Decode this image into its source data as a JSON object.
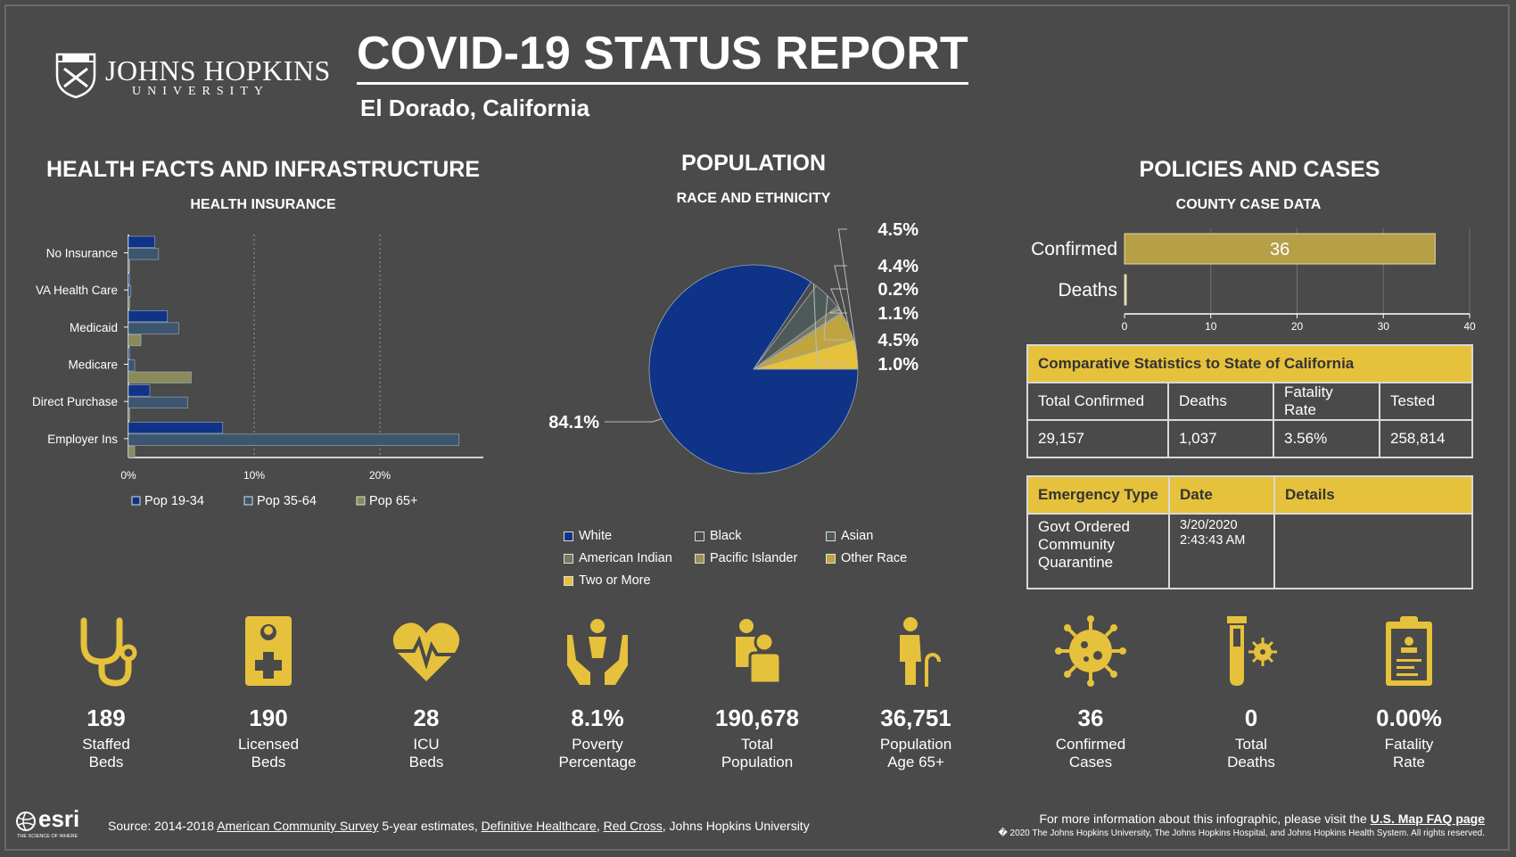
{
  "header": {
    "logo_line1": "JOHNS HOPKINS",
    "logo_line2": "UNIVERSITY",
    "title": "COVID-19 STATUS REPORT",
    "location": "El Dorado,  California"
  },
  "sections": {
    "health": "HEALTH FACTS AND INFRASTRUCTURE",
    "population": "POPULATION",
    "policies": "POLICIES AND CASES"
  },
  "colors": {
    "bg": "#4a4a4a",
    "yellow": "#e6c13b",
    "navy": "#0f3386",
    "slate": "#3d566f",
    "olive": "#8b8a5a",
    "pie_white": "#0f3386",
    "pie_black": "#4a4a4a"
  },
  "chart_data": [
    {
      "type": "bar",
      "orientation": "horizontal",
      "title": "HEALTH INSURANCE",
      "categories": [
        "No Insurance",
        "VA Health Care",
        "Medicaid",
        "Medicare",
        "Direct Purchase",
        "Employer Ins"
      ],
      "series": [
        {
          "name": "Pop 19-34",
          "color": "#0f3386",
          "values": [
            2.1,
            0.1,
            3.1,
            0.1,
            1.7,
            7.5
          ]
        },
        {
          "name": "Pop 35-64",
          "color": "#3d566f",
          "values": [
            2.4,
            0.2,
            4.0,
            0.5,
            4.7,
            26.3
          ]
        },
        {
          "name": "Pop 65+",
          "color": "#8b8a5a",
          "values": [
            0.1,
            0.1,
            1.0,
            5.0,
            0.1,
            0.5
          ]
        }
      ],
      "xticks": [
        "0%",
        "10%",
        "20%"
      ],
      "xlim": [
        0,
        28
      ],
      "grid": true
    },
    {
      "type": "pie",
      "title": "RACE AND ETHNICITY",
      "slices": [
        {
          "name": "White",
          "value": 84.1,
          "label": "84.1%",
          "color": "#0f3386"
        },
        {
          "name": "Black",
          "value": 1.0,
          "label": "1.0%",
          "color": "#4a4a4a"
        },
        {
          "name": "Asian",
          "value": 4.5,
          "label": "4.5%",
          "color": "#4f5a58"
        },
        {
          "name": "American Indian",
          "value": 1.1,
          "label": "1.1%",
          "color": "#77785c"
        },
        {
          "name": "Pacific Islander",
          "value": 0.2,
          "label": "0.2%",
          "color": "#9a9150"
        },
        {
          "name": "Other Race",
          "value": 4.4,
          "label": "4.4%",
          "color": "#bfa43f"
        },
        {
          "name": "Two or More",
          "value": 4.5,
          "label": "4.5%",
          "color": "#e6c13b"
        }
      ]
    },
    {
      "type": "bar",
      "orientation": "horizontal",
      "title": "COUNTY CASE DATA",
      "categories": [
        "Confirmed",
        "Deaths"
      ],
      "values": [
        36,
        0
      ],
      "value_labels": [
        "36",
        ""
      ],
      "color": "#b59f47",
      "xticks": [
        "0",
        "10",
        "20",
        "30",
        "40"
      ],
      "xlim": [
        0,
        40
      ],
      "grid": true
    }
  ],
  "comparative": {
    "title": "Comparative Statistics to State of California",
    "headers": [
      "Total Confirmed",
      "Deaths",
      "Fatality Rate",
      "Tested"
    ],
    "values": [
      "29,157",
      "1,037",
      "3.56%",
      "258,814"
    ]
  },
  "emergency": {
    "headers": [
      "Emergency Type",
      "Date",
      "Details"
    ],
    "type": "Govt Ordered Community Quarantine",
    "date": "3/20/2020 2:43:43 AM",
    "details": ""
  },
  "stats": [
    {
      "icon": "stethoscope-icon",
      "value": "189",
      "label": "Staffed\nBeds"
    },
    {
      "icon": "medical-id-icon",
      "value": "190",
      "label": "Licensed\nBeds"
    },
    {
      "icon": "heartbeat-icon",
      "value": "28",
      "label": "ICU\nBeds"
    },
    {
      "icon": "helping-hands-icon",
      "value": "8.1%",
      "label": "Poverty\nPercentage"
    },
    {
      "icon": "people-icon",
      "value": "190,678",
      "label": "Total\nPopulation"
    },
    {
      "icon": "elderly-person-icon",
      "value": "36,751",
      "label": "Population\nAge 65+"
    },
    {
      "icon": "virus-icon",
      "value": "36",
      "label": "Confirmed\nCases"
    },
    {
      "icon": "test-tube-virus-icon",
      "value": "0",
      "label": "Total\nDeaths"
    },
    {
      "icon": "clipboard-icon",
      "value": "0.00%",
      "label": "Fatality\nRate"
    }
  ],
  "footer": {
    "esri": "esri",
    "esri_tag": "THE SCIENCE OF WHERE",
    "source_prefix": "Source: 2014-2018 ",
    "link_acs": "American Community Survey",
    "source_mid": " 5-year estimates, ",
    "link_dh": "Definitive Healthcare",
    "comma": ", ",
    "link_rc": "Red Cross",
    "source_suffix": ", Johns Hopkins University",
    "info_prefix": "For more information about this infographic, please visit the ",
    "info_link": "U.S. Map FAQ page",
    "copyright": "� 2020 The Johns Hopkins University, The Johns Hopkins Hospital, and Johns Hopkins Health System. All rights reserved."
  }
}
